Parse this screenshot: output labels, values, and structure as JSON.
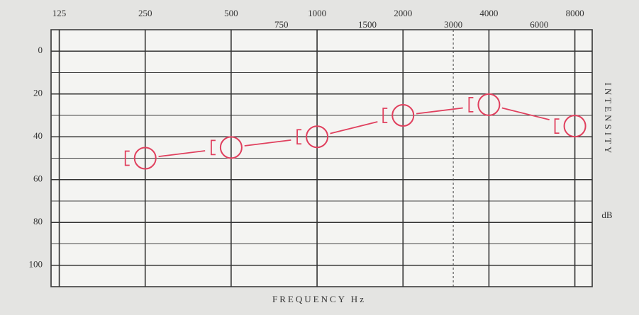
{
  "chart_data": {
    "type": "audiogram",
    "x": [
      250,
      500,
      1000,
      2000,
      4000,
      8000
    ],
    "values": [
      50,
      45,
      40,
      30,
      25,
      35
    ],
    "color": "#e0405e",
    "x_label": "FREQUENCY Hz",
    "y_label": "INTENSITY",
    "y_unit": "dB",
    "xlog": true,
    "xlim": [
      117,
      9200
    ],
    "xticks": [
      125,
      250,
      500,
      1000,
      2000,
      4000,
      8000
    ],
    "xticks_minor": [
      750,
      1500,
      3000,
      6000
    ],
    "xgrid_dashed": [
      3000
    ],
    "ylim": [
      110,
      -10
    ],
    "yticks": [
      0,
      20,
      40,
      60,
      80,
      100
    ],
    "ygrid_minor": [
      -10,
      10,
      30,
      50,
      70,
      90,
      110
    ],
    "grid": true
  }
}
